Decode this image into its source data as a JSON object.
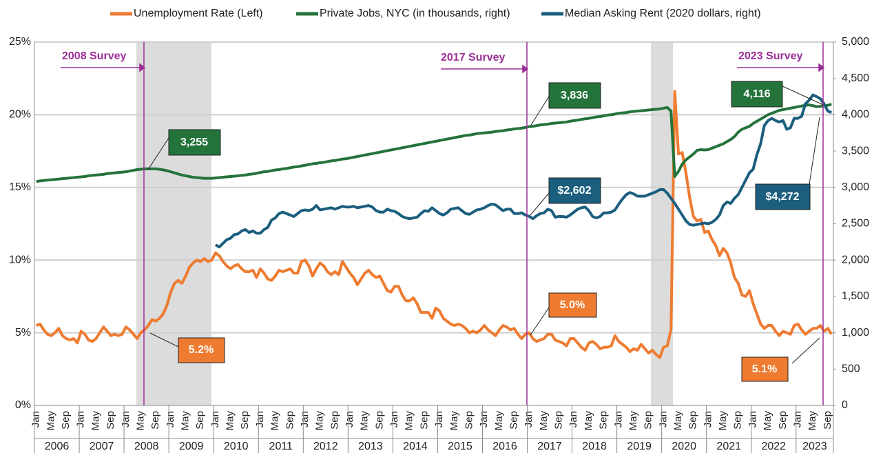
{
  "chart_data": {
    "type": "line",
    "categories": [
      "Jan",
      null,
      null,
      null,
      "May",
      null,
      null,
      null,
      "Sep",
      null,
      null,
      null,
      "Jan",
      null,
      null,
      null,
      "May",
      null,
      null,
      null,
      "Sep",
      null,
      null,
      null,
      "Jan",
      null,
      null,
      null,
      "May",
      null,
      null,
      null,
      "Sep",
      null,
      null,
      null,
      "Jan",
      null,
      null,
      null,
      "May",
      null,
      null,
      null,
      "Sep",
      null,
      null,
      null,
      "Jan",
      null,
      null,
      null,
      "May",
      null,
      null,
      null,
      "Sep",
      null,
      null,
      null,
      "Jan",
      null,
      null,
      null,
      "May",
      null,
      null,
      null,
      "Sep",
      null,
      null,
      null,
      "Jan",
      null,
      null,
      null,
      "May",
      null,
      null,
      null,
      "Sep",
      null,
      null,
      null,
      "Jan",
      null,
      null,
      null,
      "May",
      null,
      null,
      null,
      "Sep",
      null,
      null,
      null,
      "Jan",
      null,
      null,
      null,
      "May",
      null,
      null,
      null,
      "Sep",
      null,
      null,
      null,
      "Jan",
      null,
      null,
      null,
      "May",
      null,
      null,
      null,
      "Sep",
      null,
      null,
      null,
      "Jan",
      null,
      null,
      null,
      "May",
      null,
      null,
      null,
      "Sep",
      null,
      null,
      null,
      "Jan",
      null,
      null,
      null,
      "May",
      null,
      null,
      null,
      "Sep",
      null,
      null,
      null,
      "Jan",
      null,
      null,
      null,
      "May",
      null,
      null,
      null,
      "Sep",
      null,
      null,
      null,
      "Jan",
      null,
      null,
      null,
      "May",
      null,
      null,
      null,
      "Sep",
      null,
      null,
      null,
      "Jan",
      null,
      null,
      null,
      "May",
      null,
      null,
      null,
      "Sep",
      null,
      null,
      null,
      "Jan",
      null,
      null,
      null,
      "May",
      null,
      null,
      null,
      "Sep",
      null,
      null,
      null,
      "Jan",
      null,
      null,
      null,
      "May",
      null,
      null,
      null,
      "Sep",
      null,
      null,
      null,
      "Jan",
      null,
      null,
      null,
      "May",
      null,
      null,
      null,
      "Sep",
      null
    ],
    "year_labels": [
      "2006",
      "2007",
      "2008",
      "2009",
      "2010",
      "2011",
      "2012",
      "2013",
      "2014",
      "2015",
      "2016",
      "2017",
      "2018",
      "2019",
      "2020",
      "2021",
      "2022",
      "2023"
    ],
    "series": [
      {
        "name": "Unemployment Rate (Left)",
        "color": "#ee7b30",
        "axis": "y",
        "values": [
          5.5,
          5.6,
          5.2,
          4.9,
          4.8,
          5.0,
          5.3,
          4.8,
          4.6,
          4.5,
          4.6,
          4.3,
          5.1,
          4.9,
          4.5,
          4.4,
          4.6,
          5.0,
          5.4,
          5.1,
          4.8,
          4.9,
          4.8,
          4.9,
          5.4,
          5.2,
          4.9,
          4.6,
          5.0,
          5.2,
          5.5,
          5.9,
          5.8,
          6.0,
          6.3,
          6.9,
          7.8,
          8.4,
          8.6,
          8.4,
          8.9,
          9.5,
          9.8,
          10.0,
          9.9,
          10.1,
          9.9,
          10.0,
          10.5,
          10.3,
          9.9,
          9.6,
          9.4,
          9.6,
          9.7,
          9.4,
          9.2,
          9.2,
          9.3,
          8.8,
          9.4,
          9.1,
          8.7,
          8.6,
          8.9,
          9.3,
          9.2,
          9.3,
          9.4,
          9.1,
          9.1,
          9.9,
          10.0,
          9.6,
          8.9,
          9.4,
          9.8,
          9.6,
          9.2,
          9.0,
          9.2,
          9.0,
          9.9,
          9.5,
          9.1,
          8.8,
          8.3,
          8.7,
          9.1,
          9.3,
          9.0,
          8.8,
          8.9,
          8.4,
          7.9,
          7.8,
          8.2,
          8.2,
          7.6,
          7.2,
          7.2,
          7.4,
          7.0,
          6.4,
          6.4,
          6.4,
          6.0,
          6.7,
          6.5,
          6.0,
          5.8,
          5.6,
          5.5,
          5.6,
          5.5,
          5.3,
          5.0,
          5.1,
          5.0,
          5.2,
          5.5,
          5.2,
          5.0,
          4.8,
          5.2,
          5.5,
          5.4,
          5.2,
          5.3,
          4.9,
          4.6,
          4.9,
          5.0,
          4.6,
          4.4,
          4.5,
          4.6,
          4.9,
          4.9,
          4.5,
          4.4,
          4.3,
          4.1,
          4.6,
          4.6,
          4.3,
          4.0,
          3.8,
          4.3,
          4.4,
          4.2,
          3.9,
          4.0,
          4.0,
          4.1,
          4.8,
          4.4,
          4.2,
          4.0,
          3.7,
          3.9,
          3.8,
          4.2,
          3.9,
          3.6,
          3.8,
          3.5,
          3.3,
          4.0,
          4.1,
          5.2,
          21.6,
          17.3,
          17.4,
          16.0,
          14.3,
          13.0,
          12.7,
          12.8,
          11.9,
          12.0,
          11.4,
          11.0,
          10.3,
          10.8,
          10.5,
          9.8,
          8.8,
          8.4,
          7.6,
          7.5,
          7.9,
          7.0,
          6.3,
          5.6,
          5.3,
          5.5,
          5.5,
          5.1,
          4.8,
          5.1,
          5.0,
          4.9,
          5.5,
          5.6,
          5.2,
          4.9,
          5.1,
          5.3,
          5.3,
          5.5,
          5.1,
          5.3,
          4.9
        ]
      },
      {
        "name": "Private Jobs, NYC (in thousands, right)",
        "color": "#24733b",
        "axis": "y2",
        "values": [
          3080,
          3090,
          3095,
          3100,
          3105,
          3110,
          3115,
          3120,
          3125,
          3130,
          3135,
          3140,
          3145,
          3150,
          3160,
          3165,
          3170,
          3175,
          3180,
          3190,
          3195,
          3200,
          3205,
          3210,
          3215,
          3225,
          3235,
          3245,
          3250,
          3255,
          3255,
          3255,
          3255,
          3250,
          3240,
          3230,
          3215,
          3200,
          3185,
          3170,
          3160,
          3150,
          3140,
          3135,
          3130,
          3125,
          3125,
          3125,
          3130,
          3135,
          3140,
          3145,
          3150,
          3155,
          3160,
          3165,
          3170,
          3180,
          3185,
          3195,
          3205,
          3215,
          3220,
          3230,
          3240,
          3245,
          3255,
          3260,
          3270,
          3280,
          3285,
          3295,
          3305,
          3315,
          3325,
          3330,
          3340,
          3345,
          3355,
          3365,
          3370,
          3380,
          3390,
          3395,
          3405,
          3415,
          3425,
          3435,
          3445,
          3455,
          3465,
          3475,
          3485,
          3495,
          3505,
          3515,
          3525,
          3535,
          3545,
          3555,
          3565,
          3575,
          3585,
          3595,
          3605,
          3615,
          3625,
          3635,
          3645,
          3655,
          3665,
          3675,
          3685,
          3695,
          3705,
          3715,
          3720,
          3730,
          3740,
          3745,
          3750,
          3755,
          3760,
          3770,
          3775,
          3780,
          3790,
          3795,
          3805,
          3810,
          3815,
          3825,
          3836,
          3840,
          3850,
          3860,
          3865,
          3870,
          3880,
          3885,
          3890,
          3895,
          3900,
          3910,
          3920,
          3925,
          3935,
          3945,
          3950,
          3960,
          3970,
          3975,
          3985,
          3995,
          4000,
          4010,
          4020,
          4025,
          4030,
          4040,
          4045,
          4050,
          4055,
          4060,
          4065,
          4070,
          4075,
          4080,
          4090,
          4100,
          4050,
          3150,
          3220,
          3320,
          3380,
          3420,
          3460,
          3510,
          3520,
          3515,
          3520,
          3540,
          3560,
          3580,
          3600,
          3630,
          3660,
          3700,
          3760,
          3800,
          3820,
          3840,
          3880,
          3910,
          3940,
          3970,
          4000,
          4020,
          4040,
          4060,
          4070,
          4080,
          4090,
          4100,
          4110,
          4120,
          4130,
          4135,
          4125,
          4110,
          4116,
          4120,
          4130,
          4145
        ]
      },
      {
        "name": "Median Asking Rent (2020 dollars, right)",
        "color": "#1b5e7e",
        "axis": "y2",
        "values": [
          null,
          null,
          null,
          null,
          null,
          null,
          null,
          null,
          null,
          null,
          null,
          null,
          null,
          null,
          null,
          null,
          null,
          null,
          null,
          null,
          null,
          null,
          null,
          null,
          null,
          null,
          null,
          null,
          null,
          null,
          null,
          null,
          null,
          null,
          null,
          null,
          null,
          null,
          null,
          null,
          null,
          null,
          null,
          null,
          null,
          null,
          null,
          null,
          2210,
          2180,
          2230,
          2280,
          2300,
          2350,
          2360,
          2400,
          2420,
          2380,
          2400,
          2370,
          2370,
          2420,
          2450,
          2550,
          2580,
          2640,
          2660,
          2640,
          2620,
          2600,
          2640,
          2680,
          2690,
          2680,
          2700,
          2750,
          2690,
          2700,
          2710,
          2720,
          2700,
          2720,
          2740,
          2730,
          2730,
          2740,
          2720,
          2730,
          2740,
          2750,
          2730,
          2680,
          2660,
          2660,
          2700,
          2680,
          2670,
          2640,
          2600,
          2580,
          2570,
          2580,
          2590,
          2640,
          2680,
          2670,
          2720,
          2680,
          2640,
          2620,
          2650,
          2700,
          2710,
          2720,
          2680,
          2640,
          2630,
          2660,
          2690,
          2700,
          2720,
          2750,
          2770,
          2760,
          2720,
          2680,
          2700,
          2700,
          2640,
          2640,
          2650,
          2620,
          2602,
          2570,
          2610,
          2640,
          2650,
          2700,
          2680,
          2590,
          2600,
          2600,
          2590,
          2620,
          2660,
          2700,
          2720,
          2730,
          2680,
          2600,
          2580,
          2600,
          2650,
          2650,
          2660,
          2690,
          2770,
          2840,
          2900,
          2930,
          2910,
          2880,
          2880,
          2880,
          2900,
          2920,
          2940,
          2970,
          2970,
          2920,
          2850,
          2780,
          2700,
          2620,
          2540,
          2490,
          2480,
          2490,
          2500,
          2510,
          2500,
          2520,
          2560,
          2620,
          2750,
          2800,
          2780,
          2850,
          2900,
          3000,
          3100,
          3200,
          3250,
          3450,
          3600,
          3850,
          3920,
          3950,
          3920,
          3900,
          3920,
          3800,
          3820,
          3950,
          3950,
          3980,
          4150,
          4200,
          4272,
          4250,
          4220,
          4150,
          4050,
          4030
        ]
      }
    ],
    "ylim": [
      0,
      25
    ],
    "yticks": [
      {
        "value": 0,
        "label": "0%"
      },
      {
        "value": 5,
        "label": "5%"
      },
      {
        "value": 10,
        "label": "10%"
      },
      {
        "value": 15,
        "label": "15%"
      },
      {
        "value": 20,
        "label": "20%"
      },
      {
        "value": 25,
        "label": "25%"
      }
    ],
    "y2lim": [
      0,
      5000
    ],
    "y2ticks": [
      0,
      500,
      {
        "value": 1000,
        "label": "1,000"
      },
      {
        "value": 1500,
        "label": "1,500"
      },
      {
        "value": 2000,
        "label": "2,000"
      },
      {
        "value": 2500,
        "label": "2,500"
      },
      {
        "value": 3000,
        "label": "3,000"
      },
      {
        "value": 3500,
        "label": "3,500"
      },
      {
        "value": 4000,
        "label": "4,000"
      },
      {
        "value": 4500,
        "label": "4,500"
      },
      {
        "value": 5000,
        "label": "5,000"
      }
    ],
    "grid": true,
    "legend": "top",
    "annotations": [
      {
        "text": "2008 Survey"
      },
      {
        "text": "2017 Survey"
      },
      {
        "text": "2023 Survey"
      },
      {
        "text": "3,255"
      },
      {
        "text": "3,836"
      },
      {
        "text": "4,116"
      },
      {
        "text": "$2,602"
      },
      {
        "text": "$4,272"
      },
      {
        "text": "5.2%"
      },
      {
        "text": "5.0%"
      },
      {
        "text": "5.1%"
      }
    ]
  }
}
